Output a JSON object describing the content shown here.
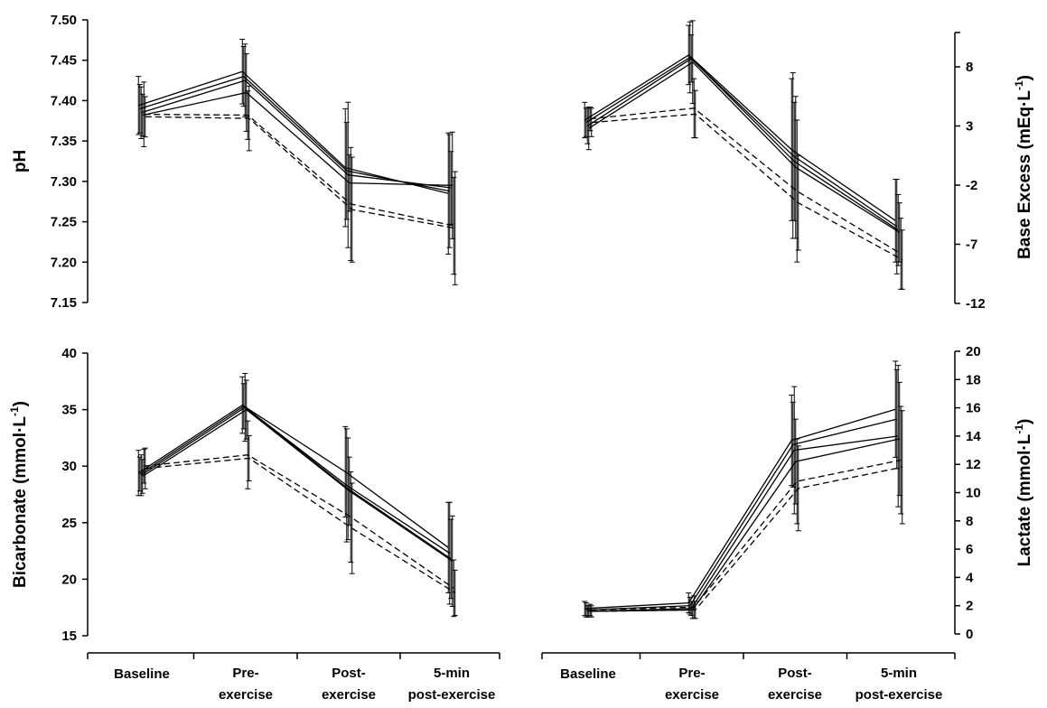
{
  "chart_data": [
    {
      "type": "line",
      "panel": "top-left",
      "ylabel": "pH",
      "ylabel_sup": "",
      "ylim": [
        7.15,
        7.5
      ],
      "yticks": [
        "7.15",
        "7.20",
        "7.25",
        "7.30",
        "7.35",
        "7.40",
        "7.45",
        "7.50"
      ],
      "categories": [
        "Baseline",
        "Pre-\nexercise",
        "Post-\nexercise",
        "5-min\npost-exercise"
      ],
      "series": [
        {
          "name": "solid 1",
          "style": "solid",
          "values": [
            7.394,
            7.436,
            7.317,
            7.285
          ],
          "err": [
            0.036,
            0.04,
            0.073,
            0.075
          ]
        },
        {
          "name": "solid 2",
          "style": "solid",
          "values": [
            7.39,
            7.43,
            7.313,
            7.288
          ],
          "err": [
            0.03,
            0.037,
            0.06,
            0.07
          ]
        },
        {
          "name": "solid 3",
          "style": "solid",
          "values": [
            7.385,
            7.425,
            7.308,
            7.292
          ],
          "err": [
            0.032,
            0.045,
            0.09,
            0.045
          ]
        },
        {
          "name": "solid 4",
          "style": "solid",
          "values": [
            7.382,
            7.41,
            7.298,
            7.295
          ],
          "err": [
            0.026,
            0.048,
            0.035,
            0.066
          ]
        },
        {
          "name": "dashed 1",
          "style": "dashed",
          "values": [
            7.383,
            7.382,
            7.272,
            7.245
          ],
          "err": [
            0.04,
            0.03,
            0.07,
            0.06
          ]
        },
        {
          "name": "dashed 2",
          "style": "dashed",
          "values": [
            7.38,
            7.378,
            7.265,
            7.242
          ],
          "err": [
            0.025,
            0.04,
            0.065,
            0.07
          ]
        }
      ]
    },
    {
      "type": "line",
      "panel": "top-right",
      "ylabel": "Base Excess (mEq·L",
      "ylabel_sup": "-1",
      "ylabel_close": ")",
      "ylim": [
        -12,
        11
      ],
      "yticks": [
        "-12",
        "-7",
        "-2",
        "3",
        "8"
      ],
      "categories": [
        "Baseline",
        "Pre-\nexercise",
        "Post-\nexercise",
        "5-min\npost-exercise"
      ],
      "series": [
        {
          "name": "solid 1",
          "style": "solid",
          "values": [
            3.5,
            9.0,
            1.0,
            -5.0
          ],
          "err": [
            1.5,
            2.5,
            6.0,
            3.5
          ]
        },
        {
          "name": "solid 2",
          "style": "solid",
          "values": [
            3.3,
            8.8,
            0.5,
            -5.5
          ],
          "err": [
            1.2,
            3.0,
            7.0,
            4.0
          ]
        },
        {
          "name": "solid 3",
          "style": "solid",
          "values": [
            3.0,
            8.7,
            0.0,
            -5.8
          ],
          "err": [
            1.5,
            2.0,
            5.0,
            3.0
          ]
        },
        {
          "name": "solid 4",
          "style": "solid",
          "values": [
            2.8,
            8.4,
            -0.5,
            -6.0
          ],
          "err": [
            1.8,
            3.5,
            6.0,
            2.5
          ]
        },
        {
          "name": "dashed 1",
          "style": "dashed",
          "values": [
            3.6,
            4.5,
            -2.5,
            -7.8
          ],
          "err": [
            1.0,
            2.5,
            6.0,
            3.0
          ]
        },
        {
          "name": "dashed 2",
          "style": "dashed",
          "values": [
            3.3,
            4.0,
            -3.5,
            -8.3
          ],
          "err": [
            1.2,
            2.0,
            4.0,
            2.5
          ]
        }
      ]
    },
    {
      "type": "line",
      "panel": "bottom-left",
      "ylabel": "Bicarbonate (mmol·L",
      "ylabel_sup": "-1",
      "ylabel_close": ")",
      "ylim": [
        15,
        40
      ],
      "yticks": [
        "15",
        "20",
        "25",
        "30",
        "35",
        "40"
      ],
      "categories": [
        "Baseline",
        "Pre-\nexercise",
        "Post-\nexercise",
        "5-min\npost-exercise"
      ],
      "series": [
        {
          "name": "solid 1",
          "style": "solid",
          "values": [
            29.4,
            35.4,
            29.5,
            22.8
          ],
          "err": [
            2.0,
            2.5,
            4.0,
            4.0
          ]
        },
        {
          "name": "solid 2",
          "style": "solid",
          "values": [
            29.3,
            35.3,
            28.3,
            22.3
          ],
          "err": [
            1.5,
            2.0,
            5.0,
            4.5
          ]
        },
        {
          "name": "solid 3",
          "style": "solid",
          "values": [
            29.2,
            35.2,
            28.0,
            21.8
          ],
          "err": [
            1.8,
            3.0,
            4.5,
            3.5
          ]
        },
        {
          "name": "solid 4",
          "style": "solid",
          "values": [
            29.1,
            35.0,
            27.8,
            21.6
          ],
          "err": [
            1.5,
            2.6,
            3.0,
            4.0
          ]
        },
        {
          "name": "dashed 1",
          "style": "dashed",
          "values": [
            30.0,
            31.0,
            25.5,
            19.2
          ],
          "err": [
            1.5,
            3.0,
            4.0,
            2.5
          ]
        },
        {
          "name": "dashed 2",
          "style": "dashed",
          "values": [
            29.8,
            30.7,
            24.5,
            18.8
          ],
          "err": [
            1.8,
            2.0,
            4.0,
            2.0
          ]
        }
      ]
    },
    {
      "type": "line",
      "panel": "bottom-right",
      "ylabel": "Lactate (mmol·L",
      "ylabel_sup": "-1",
      "ylabel_close": ")",
      "ylim": [
        0,
        20
      ],
      "yticks": [
        "0",
        "2",
        "4",
        "6",
        "8",
        "10",
        "12",
        "14",
        "16",
        "18",
        "20"
      ],
      "categories": [
        "Baseline",
        "Pre-\nexercise",
        "Post-\nexercise",
        "5-min\npost-exercise"
      ],
      "series": [
        {
          "name": "solid 1",
          "style": "solid",
          "values": [
            1.8,
            2.2,
            13.7,
            15.9
          ],
          "err": [
            0.5,
            0.7,
            3.2,
            3.4
          ]
        },
        {
          "name": "solid 2",
          "style": "solid",
          "values": [
            1.7,
            2.0,
            13.4,
            15.2
          ],
          "err": [
            0.5,
            0.6,
            3.0,
            3.5
          ]
        },
        {
          "name": "solid 3",
          "style": "solid",
          "values": [
            1.6,
            1.8,
            13.0,
            14.0
          ],
          "err": [
            0.4,
            0.5,
            4.5,
            5.0
          ]
        },
        {
          "name": "solid 4",
          "style": "solid",
          "values": [
            1.6,
            1.7,
            12.2,
            13.8
          ],
          "err": [
            0.4,
            0.6,
            3.0,
            4.0
          ]
        },
        {
          "name": "dashed 1",
          "style": "dashed",
          "values": [
            1.7,
            1.9,
            10.8,
            12.3
          ],
          "err": [
            0.4,
            0.8,
            3.0,
            3.8
          ]
        },
        {
          "name": "dashed 2",
          "style": "dashed",
          "values": [
            1.6,
            1.7,
            10.3,
            11.8
          ],
          "err": [
            0.4,
            0.6,
            3.0,
            4.0
          ]
        }
      ]
    }
  ]
}
